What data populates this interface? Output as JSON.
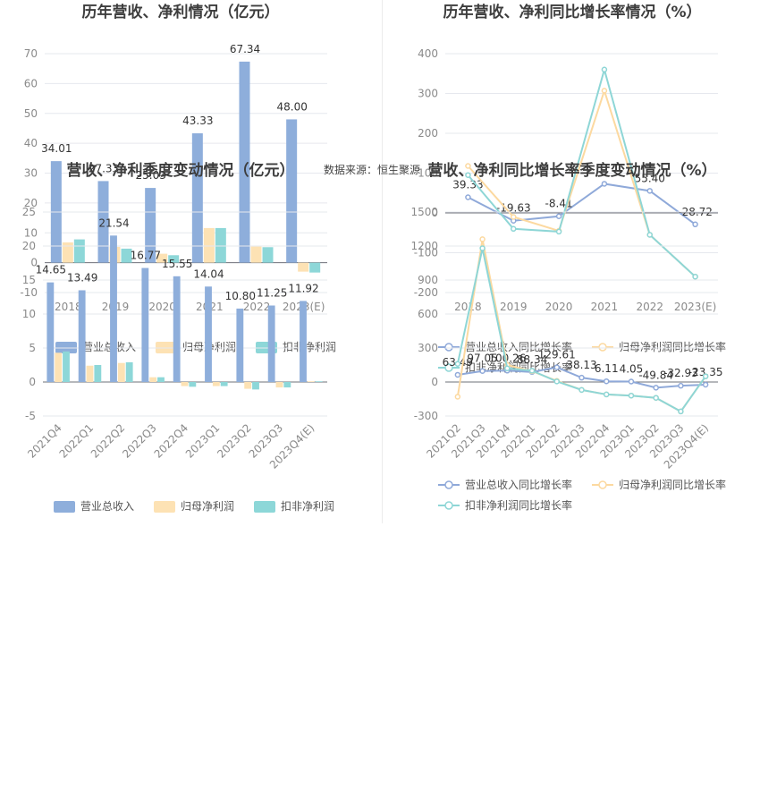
{
  "source_text": "数据来源：恒生聚源",
  "colors": {
    "revenue": "#8eaedb",
    "net_profit": "#fde2b4",
    "deducted": "#8dd7d8",
    "grid": "#e6e8ee",
    "axis": "#6e7079"
  },
  "chart_data": [
    {
      "id": "annual-amount",
      "type": "bar",
      "title": "历年营收、净利情况（亿元）",
      "categories": [
        "2018",
        "2019",
        "2020",
        "2021",
        "2022",
        "2023(E)"
      ],
      "series": [
        {
          "name": "营业总收入",
          "values": [
            34.01,
            27.33,
            25.03,
            43.33,
            67.34,
            48.0
          ],
          "labels": [
            "34.01",
            "27.33",
            "25.03",
            "43.33",
            "67.34",
            "48.00"
          ]
        },
        {
          "name": "归母净利润",
          "values": [
            6.8,
            5.3,
            3.0,
            11.6,
            5.4,
            -3.0
          ]
        },
        {
          "name": "扣非净利润",
          "values": [
            7.8,
            4.7,
            2.5,
            11.6,
            5.2,
            -3.3
          ]
        }
      ],
      "yticks": [
        -10,
        0,
        10,
        20,
        30,
        40,
        50,
        60,
        70
      ],
      "ylim": [
        -10,
        70
      ],
      "legend": "bottom"
    },
    {
      "id": "annual-growth",
      "type": "line",
      "title": "历年营收、净利同比增长率情况（%）",
      "categories": [
        "2018",
        "2019",
        "2020",
        "2021",
        "2022",
        "2023(E)"
      ],
      "series": [
        {
          "name": "营业总收入同比增长率",
          "values": [
            39.33,
            -19.63,
            -8.41,
            73.1,
            55.4,
            -28.72
          ],
          "labels": [
            "39.33",
            "-19.63",
            "-8.41",
            "",
            "55.40",
            "-28.72"
          ]
        },
        {
          "name": "归母净利润同比增长率",
          "values": [
            118,
            -10,
            -45,
            307,
            -55,
            -160
          ]
        },
        {
          "name": "扣非净利润同比增长率",
          "values": [
            95,
            -40,
            -47,
            360,
            -55,
            -160
          ]
        }
      ],
      "yticks": [
        -200,
        -100,
        0,
        100,
        200,
        300,
        400
      ],
      "ylim": [
        -200,
        400
      ],
      "legend": "bottom"
    },
    {
      "id": "quarterly-amount",
      "type": "bar",
      "title": "营收、净利季度变动情况（亿元）",
      "categories": [
        "2021Q4",
        "2022Q1",
        "2022Q2",
        "2022Q3",
        "2022Q4",
        "2023Q1",
        "2023Q2",
        "2023Q3",
        "2023Q4(E)"
      ],
      "series": [
        {
          "name": "营业总收入",
          "values": [
            14.65,
            13.49,
            21.54,
            16.77,
            15.55,
            14.04,
            10.8,
            11.25,
            11.92
          ],
          "labels": [
            "14.65",
            "13.49",
            "21.54",
            "16.77",
            "15.55",
            "14.04",
            "10.80",
            "11.25",
            "11.92"
          ]
        },
        {
          "name": "归母净利润",
          "values": [
            4.3,
            2.4,
            2.8,
            0.7,
            -0.6,
            -0.6,
            -1.0,
            -0.8,
            0.1
          ]
        },
        {
          "name": "扣非净利润",
          "values": [
            4.5,
            2.5,
            2.9,
            0.7,
            -0.7,
            -0.6,
            -1.1,
            -0.8,
            0.1
          ]
        }
      ],
      "yticks": [
        -5,
        0,
        5,
        10,
        15,
        20,
        25
      ],
      "ylim": [
        -5,
        25
      ],
      "legend": "bottom"
    },
    {
      "id": "quarterly-growth",
      "type": "line",
      "title": "营收、净利同比增长率季度变动情况（%）",
      "categories": [
        "2021Q2",
        "2021Q3",
        "2021Q4",
        "2022Q1",
        "2022Q2",
        "2022Q3",
        "2022Q4",
        "2023Q1",
        "2023Q2",
        "2023Q3",
        "2023Q4(E)"
      ],
      "series": [
        {
          "name": "营业总收入同比增长率",
          "values": [
            63.49,
            97.05,
            100.26,
            88.34,
            129.61,
            38.13,
            6.11,
            4.05,
            -49.84,
            -32.93,
            -23.35
          ],
          "labels": [
            "63.49",
            "97.05",
            "100.26",
            "88.34",
            "129.61",
            "38.13",
            "6.11",
            "4.05",
            "-49.84",
            "-32.93",
            "-23.35"
          ]
        },
        {
          "name": "归母净利润同比增长率",
          "values": [
            -130,
            1260,
            150,
            95,
            10,
            -70,
            -110,
            -120,
            -140,
            -260,
            50
          ]
        },
        {
          "name": "扣非净利润同比增长率",
          "values": [
            160,
            1180,
            120,
            100,
            5,
            -70,
            -110,
            -120,
            -140,
            -260,
            50
          ]
        }
      ],
      "yticks": [
        -300,
        0,
        300,
        600,
        900,
        1200,
        1500
      ],
      "ylim": [
        -300,
        1500
      ],
      "legend": "bottom"
    }
  ]
}
